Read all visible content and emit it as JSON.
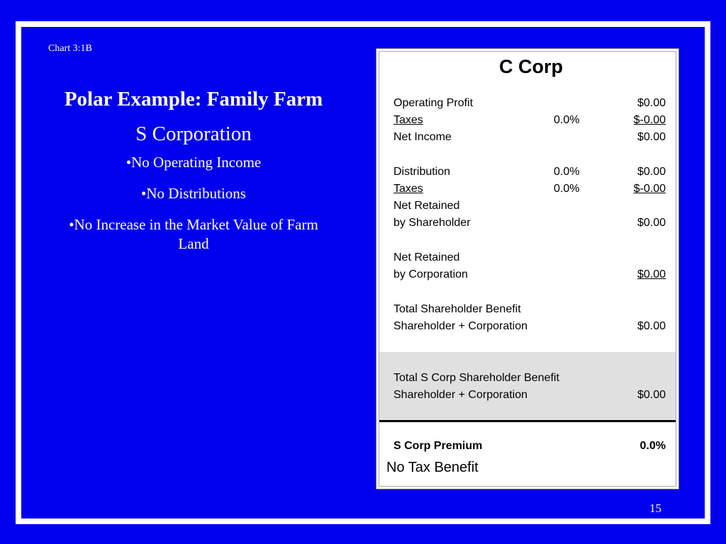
{
  "slide": {
    "chart_label": "Chart 3:1B",
    "title": "Polar Example:  Family Farm",
    "subtitle": "S Corporation",
    "bullets": [
      "•No Operating Income",
      "•No Distributions",
      "•No Increase in the Market Value of Farm Land"
    ],
    "page_number": "15"
  },
  "panel": {
    "title": "C Corp",
    "rows": [
      {
        "label": "Operating Profit",
        "pct": "",
        "amount": "$0.00"
      },
      {
        "label": "Taxes",
        "pct": "0.0%",
        "amount": "$-0.00"
      },
      {
        "label": "Net Income",
        "pct": "",
        "amount": "$0.00"
      },
      {
        "label": "Distribution",
        "pct": "0.0%",
        "amount": "$0.00"
      },
      {
        "label": "Taxes",
        "pct": "0.0%",
        "amount": "$-0.00"
      },
      {
        "label": "Net Retained",
        "pct": "",
        "amount": ""
      },
      {
        "label": "by Shareholder",
        "pct": "",
        "amount": "$0.00"
      },
      {
        "label": "Net Retained",
        "pct": "",
        "amount": ""
      },
      {
        "label": "by Corporation",
        "pct": "",
        "amount": "$0.00"
      },
      {
        "label": "Total Shareholder Benefit",
        "pct": "",
        "amount": ""
      },
      {
        "label": "Shareholder + Corporation",
        "pct": "",
        "amount": "$0.00"
      },
      {
        "label": "Total S Corp Shareholder Benefit",
        "pct": "",
        "amount": ""
      },
      {
        "label": "Shareholder + Corporation",
        "pct": "",
        "amount": "$0.00"
      },
      {
        "label": "S Corp Premium",
        "pct": "",
        "amount": "0.0%"
      }
    ],
    "benefit_text": "No Tax Benefit"
  }
}
